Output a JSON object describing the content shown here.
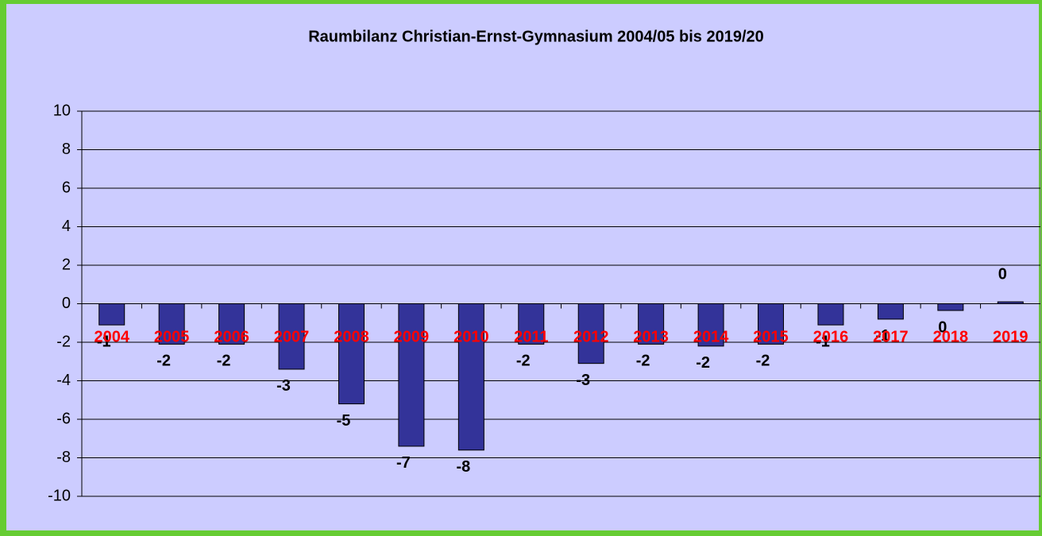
{
  "chart_data": {
    "type": "bar",
    "title": "Raumbilanz Christian-Ernst-Gymnasium 2004/05 bis 2019/20",
    "categories": [
      "2004",
      "2005",
      "2006",
      "2007",
      "2008",
      "2009",
      "2010",
      "2011",
      "2012",
      "2013",
      "2014",
      "2015",
      "2016",
      "2017",
      "2018",
      "2019"
    ],
    "values": [
      -1.1,
      -2.1,
      -2.1,
      -3.4,
      -5.2,
      -7.4,
      -7.6,
      -2.1,
      -3.1,
      -2.1,
      -2.2,
      -2.1,
      -1.1,
      -0.8,
      -0.35,
      0.1
    ],
    "value_labels": [
      "-1",
      "-2",
      "-2",
      "-3",
      "-5",
      "-7",
      "-8",
      "-2",
      "-3",
      "-2",
      "-2",
      "-2",
      "-1",
      "-1",
      "0",
      "0"
    ],
    "color": "#333399",
    "ylim": [
      -10,
      10
    ],
    "yticks": [
      -10,
      -8,
      -6,
      -4,
      -2,
      0,
      2,
      4,
      6,
      8,
      10
    ],
    "grid": true
  }
}
